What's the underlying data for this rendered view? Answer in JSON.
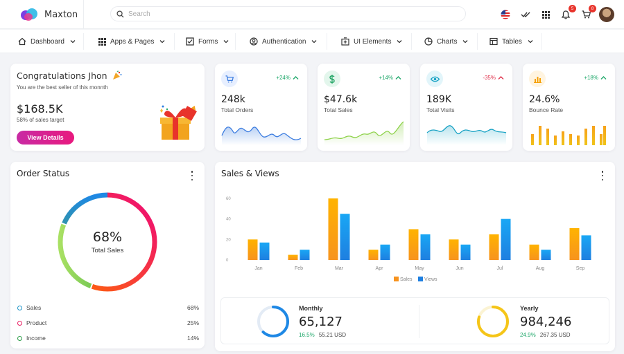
{
  "brand": {
    "name": "Maxton"
  },
  "search": {
    "placeholder": "Search"
  },
  "header": {
    "notifications_count": "5",
    "cart_count": "8"
  },
  "nav": [
    {
      "label": "Dashboard",
      "icon": "home-icon"
    },
    {
      "label": "Apps & Pages",
      "icon": "grid-icon"
    },
    {
      "label": "Forms",
      "icon": "checkbox-icon"
    },
    {
      "label": "Authentication",
      "icon": "user-circle-icon"
    },
    {
      "label": "UI Elements",
      "icon": "plus-box-icon"
    },
    {
      "label": "Charts",
      "icon": "pie-chart-icon"
    },
    {
      "label": "Tables",
      "icon": "table-icon"
    }
  ],
  "congrats": {
    "title": "Congratulations Jhon",
    "subtitle": "You are the best seller of this monnth",
    "amount": "$168.5K",
    "note": "58% of sales target",
    "button": "View Details"
  },
  "stats": [
    {
      "value": "248k",
      "label": "Total Orders",
      "trend": "+24%",
      "trend_dir": "up",
      "trend_color": "#20a86b",
      "icon": "cart-icon",
      "accent": "#3c7de0",
      "icon_bg": "#e7efff"
    },
    {
      "value": "$47.6k",
      "label": "Total Sales",
      "trend": "+14%",
      "trend_dir": "up",
      "trend_color": "#20a86b",
      "icon": "dollar-icon",
      "accent": "#1fa463",
      "icon_bg": "#e3f6ec"
    },
    {
      "value": "189K",
      "label": "Total Visits",
      "trend": "-35%",
      "trend_dir": "up",
      "trend_color": "#e0334d",
      "icon": "eye-icon",
      "accent": "#17a2c4",
      "icon_bg": "#e2f5fa"
    },
    {
      "value": "24.6%",
      "label": "Bounce Rate",
      "trend": "+18%",
      "trend_dir": "up",
      "trend_color": "#20a86b",
      "icon": "bar-chart-icon",
      "accent": "#f59f00",
      "icon_bg": "#fff4e0"
    }
  ],
  "order_status": {
    "title": "Order Status",
    "center_value": "68%",
    "center_label": "Total Sales",
    "legend": [
      {
        "label": "Sales",
        "pct": "68%",
        "color": "#2196c9"
      },
      {
        "label": "Product",
        "pct": "25%",
        "color": "#e91e63"
      },
      {
        "label": "Income",
        "pct": "14%",
        "color": "#2e9e4a"
      }
    ]
  },
  "sales_views": {
    "title": "Sales & Views",
    "summary": [
      {
        "label": "Monthly",
        "value": "65,127",
        "pct": "16.5%",
        "sub": "55.21 USD",
        "color": "#1e88e5",
        "ratio": 0.62
      },
      {
        "label": "Yearly",
        "value": "984,246",
        "pct": "24.9%",
        "sub": "267.35 USD",
        "color": "#f5c518",
        "ratio": 0.8
      }
    ]
  },
  "chart_data": {
    "type": "bar",
    "categories": [
      "Jan",
      "Feb",
      "Mar",
      "Apr",
      "May",
      "Jun",
      "Jul",
      "Aug",
      "Sep"
    ],
    "series": [
      {
        "name": "Sales",
        "values": [
          20,
          5,
          60,
          10,
          30,
          20,
          25,
          15,
          31
        ],
        "color": "#f7931e"
      },
      {
        "name": "Views",
        "values": [
          17,
          10,
          45,
          15,
          25,
          15,
          40,
          10,
          24
        ],
        "color": "#1e7fe0"
      }
    ],
    "yticks": [
      0,
      20,
      40,
      60
    ],
    "ylim": [
      0,
      62
    ],
    "legend_position": "bottom",
    "grid": false
  }
}
